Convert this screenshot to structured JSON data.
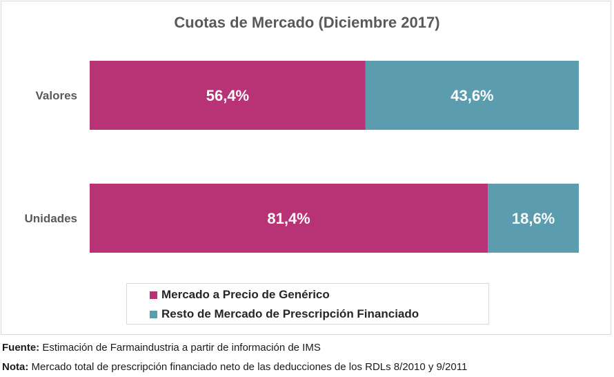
{
  "chart_data": {
    "type": "bar",
    "orientation": "horizontal",
    "stacked": true,
    "title": "Cuotas de Mercado (Diciembre 2017)",
    "categories": [
      "Valores",
      "Unidades"
    ],
    "series": [
      {
        "name": "Mercado a Precio de Genérico",
        "values": [
          56.4,
          81.4
        ],
        "labels": [
          "56,4%",
          "81,4%"
        ],
        "color": "#b83375"
      },
      {
        "name": "Resto de Mercado de Prescripción Financiado",
        "values": [
          43.6,
          18.6
        ],
        "labels": [
          "43,6%",
          "18,6%"
        ],
        "color": "#5b9daf"
      }
    ],
    "xlim": [
      0,
      100
    ],
    "grid": false,
    "legend_position": "bottom"
  },
  "footer": {
    "source_label": "Fuente:",
    "source_text": " Estimación de Farmaindustria a partir de información de IMS",
    "note_label": "Nota:",
    "note_text": " Mercado total de prescripción financiado neto de las deducciones de los RDLs 8/2010 y 9/2011"
  }
}
